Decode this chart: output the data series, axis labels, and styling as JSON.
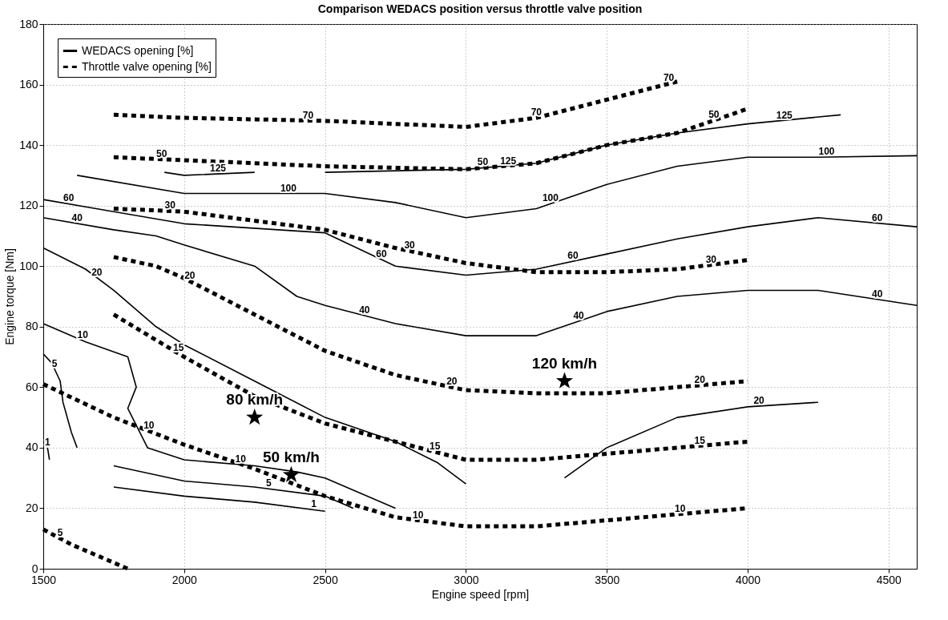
{
  "chart_data": {
    "type": "line",
    "title": "Comparison WEDACS position versus throttle valve position",
    "xlabel": "Engine speed [rpm]",
    "ylabel": "Engine torque [Nm]",
    "xlim": [
      1500,
      4600
    ],
    "xticks": [
      1500,
      2000,
      2500,
      3000,
      3500,
      4000,
      4500
    ],
    "ylim": [
      0,
      180
    ],
    "yticks": [
      0,
      20,
      40,
      60,
      80,
      100,
      120,
      140,
      160,
      180
    ],
    "grid": true,
    "legend": "top left",
    "series": [
      {
        "name": "WEDACS opening [%]",
        "color": "#000000",
        "line_style": "solid",
        "x": [
          1930,
          2000,
          2250
        ],
        "values": [
          131,
          130,
          131
        ]
      },
      {
        "color": "#000000",
        "line_style": "solid",
        "x": [
          2500,
          3000,
          3250,
          3500,
          3750,
          4000,
          4330
        ],
        "values": [
          131,
          132,
          134,
          140,
          144,
          147,
          150
        ]
      },
      {
        "color": "#000000",
        "line_style": "solid",
        "x": [
          1620,
          2000,
          2500,
          2750,
          3000,
          3250,
          3500,
          3750,
          4000,
          4250,
          4600
        ],
        "values": [
          130,
          124,
          124,
          121,
          116,
          119,
          127,
          133,
          136,
          136,
          136.5
        ]
      },
      {
        "color": "#000000",
        "line_style": "solid",
        "x": [
          1500,
          1750,
          2000,
          2500,
          2750,
          3000,
          3250,
          3500,
          3750,
          4000,
          4250,
          4600
        ],
        "values": [
          122,
          118,
          114,
          111,
          100,
          97,
          99,
          104,
          109,
          113,
          116,
          113
        ]
      },
      {
        "color": "#000000",
        "line_style": "solid",
        "x": [
          1500,
          1750,
          1900,
          2000,
          2250,
          2400,
          2500,
          2750,
          3000,
          3250,
          3500,
          3750,
          4000,
          4250,
          4600
        ],
        "values": [
          116,
          112,
          110,
          107,
          100,
          90,
          87,
          81,
          77,
          77,
          85,
          90,
          92,
          92,
          87
        ]
      },
      {
        "color": "#000000",
        "line_style": "solid",
        "x": [
          1500,
          1650,
          1750,
          1900,
          2000,
          2250,
          2500,
          2750,
          2900,
          3000
        ],
        "values": [
          106,
          99,
          92,
          80,
          74,
          62,
          50,
          42,
          35,
          28
        ]
      },
      {
        "color": "#000000",
        "line_style": "solid",
        "x": [
          3350,
          3500,
          3750,
          4000,
          4250
        ],
        "values": [
          30,
          40,
          50,
          53.5,
          55
        ]
      },
      {
        "color": "#000000",
        "line_style": "solid",
        "x": [
          1500,
          1650,
          1800,
          1830,
          1800,
          1870,
          2000,
          2250,
          2400,
          2500,
          2750
        ],
        "values": [
          81,
          75,
          70,
          60,
          53,
          40,
          36,
          34,
          32,
          30,
          20
        ]
      },
      {
        "color": "#000000",
        "line_style": "solid",
        "x": [
          1500,
          1530,
          1560,
          1570,
          1600,
          1620
        ],
        "values": [
          71,
          68,
          62,
          55,
          45,
          40
        ]
      },
      {
        "color": "#000000",
        "line_style": "solid",
        "x": [
          1750,
          2000,
          2250,
          2500,
          2600
        ],
        "values": [
          34,
          29,
          27,
          24,
          20
        ]
      },
      {
        "color": "#000000",
        "line_style": "solid",
        "x": [
          1750,
          2000,
          2250,
          2500
        ],
        "values": [
          27,
          24,
          22,
          19
        ]
      },
      {
        "color": "#000000",
        "line_style": "solid",
        "x": [
          1515,
          1522
        ],
        "values": [
          40,
          36
        ]
      },
      {
        "name": "Throttle valve opening [%]",
        "color": "#000000",
        "line_style": "dashed",
        "x": [
          1750,
          2000,
          2500,
          3000,
          3250,
          3500,
          3750
        ],
        "values": [
          150,
          149,
          148,
          146,
          149,
          155,
          161
        ]
      },
      {
        "color": "#000000",
        "line_style": "dashed",
        "x": [
          1750,
          2000,
          2500,
          3000,
          3250,
          3500,
          3750,
          4000
        ],
        "values": [
          136,
          135,
          133,
          132,
          134,
          140,
          144,
          152
        ]
      },
      {
        "color": "#000000",
        "line_style": "dashed",
        "x": [
          1750,
          2000,
          2500,
          2750,
          3000,
          3250,
          3500,
          3750,
          4000
        ],
        "values": [
          119,
          118,
          112,
          106,
          101,
          98,
          98,
          99,
          102
        ]
      },
      {
        "color": "#000000",
        "line_style": "dashed",
        "x": [
          1750,
          1900,
          2000,
          2250,
          2500,
          2750,
          3000,
          3250,
          3500,
          3750,
          4000
        ],
        "values": [
          103,
          100,
          96,
          84,
          72,
          64,
          59,
          58,
          58,
          60,
          62
        ]
      },
      {
        "color": "#000000",
        "line_style": "dashed",
        "x": [
          1750,
          2000,
          2250,
          2500,
          2750,
          3000,
          3250,
          3500,
          3750,
          4000
        ],
        "values": [
          84,
          70,
          57,
          48,
          42,
          36,
          36,
          38,
          40,
          42
        ]
      },
      {
        "color": "#000000",
        "line_style": "dashed",
        "x": [
          1500,
          1750,
          2000,
          2250,
          2500,
          2750,
          3000,
          3250,
          3500,
          3750,
          4000
        ],
        "values": [
          61,
          50,
          41,
          33,
          24,
          17,
          14,
          14,
          16,
          18,
          20
        ]
      },
      {
        "color": "#000000",
        "line_style": "dashed",
        "x": [
          1500,
          1600,
          1800
        ],
        "values": [
          13,
          8,
          0
        ]
      },
      {
        "type": "scatter",
        "color": "#000000",
        "marker": "star",
        "x": [
          2250,
          2380,
          3350
        ],
        "values": [
          50,
          31,
          62
        ]
      }
    ],
    "annotations": [
      {
        "text": "125",
        "x": 2120,
        "y": 130.5
      },
      {
        "text": "125",
        "x": 3150,
        "y": 133
      },
      {
        "text": "125",
        "x": 4130,
        "y": 148
      },
      {
        "text": "100",
        "x": 2370,
        "y": 124
      },
      {
        "text": "100",
        "x": 3300,
        "y": 120.6
      },
      {
        "text": "100",
        "x": 4280,
        "y": 136
      },
      {
        "text": "60",
        "x": 1590,
        "y": 120.6
      },
      {
        "text": "60",
        "x": 2700,
        "y": 102.2
      },
      {
        "text": "60",
        "x": 3380,
        "y": 101.6
      },
      {
        "text": "60",
        "x": 4460,
        "y": 114.2
      },
      {
        "text": "40",
        "x": 1620,
        "y": 114.1
      },
      {
        "text": "40",
        "x": 2640,
        "y": 83.6
      },
      {
        "text": "40",
        "x": 3400,
        "y": 81.8
      },
      {
        "text": "40",
        "x": 4460,
        "y": 89
      },
      {
        "text": "20",
        "x": 1690,
        "y": 96.2
      },
      {
        "text": "20",
        "x": 4040,
        "y": 53.7
      },
      {
        "text": "10",
        "x": 1640,
        "y": 75.4
      },
      {
        "text": "10",
        "x": 2200,
        "y": 34.4
      },
      {
        "text": "5",
        "x": 1540,
        "y": 66
      },
      {
        "text": "5",
        "x": 2300,
        "y": 26.4
      },
      {
        "text": "1",
        "x": 1515,
        "y": 40
      },
      {
        "text": "1",
        "x": 2460,
        "y": 19.5
      },
      {
        "text": "70",
        "x": 2440,
        "y": 148.1
      },
      {
        "text": "70",
        "x": 3250,
        "y": 149
      },
      {
        "text": "70",
        "x": 3720,
        "y": 160.3
      },
      {
        "text": "50",
        "x": 1920,
        "y": 135.3
      },
      {
        "text": "50",
        "x": 3060,
        "y": 132.5
      },
      {
        "text": "50",
        "x": 3880,
        "y": 148.2
      },
      {
        "text": "30",
        "x": 1950,
        "y": 118.2
      },
      {
        "text": "30",
        "x": 2800,
        "y": 105
      },
      {
        "text": "30",
        "x": 3870,
        "y": 100.4
      },
      {
        "text": "20",
        "x": 2020,
        "y": 95
      },
      {
        "text": "20",
        "x": 2950,
        "y": 60
      },
      {
        "text": "20",
        "x": 3830,
        "y": 60.6
      },
      {
        "text": "15",
        "x": 1980,
        "y": 71.1
      },
      {
        "text": "15",
        "x": 2890,
        "y": 38.6
      },
      {
        "text": "15",
        "x": 3830,
        "y": 40.6
      },
      {
        "text": "10",
        "x": 1875,
        "y": 45.5
      },
      {
        "text": "10",
        "x": 2830,
        "y": 16
      },
      {
        "text": "10",
        "x": 3760,
        "y": 18.1
      },
      {
        "text": "5",
        "x": 1560,
        "y": 10
      },
      {
        "text": "80 km/h",
        "x": 2250,
        "y": 50
      },
      {
        "text": "50 km/h",
        "x": 2380,
        "y": 31
      },
      {
        "text": "120 km/h",
        "x": 3350,
        "y": 62
      }
    ]
  }
}
